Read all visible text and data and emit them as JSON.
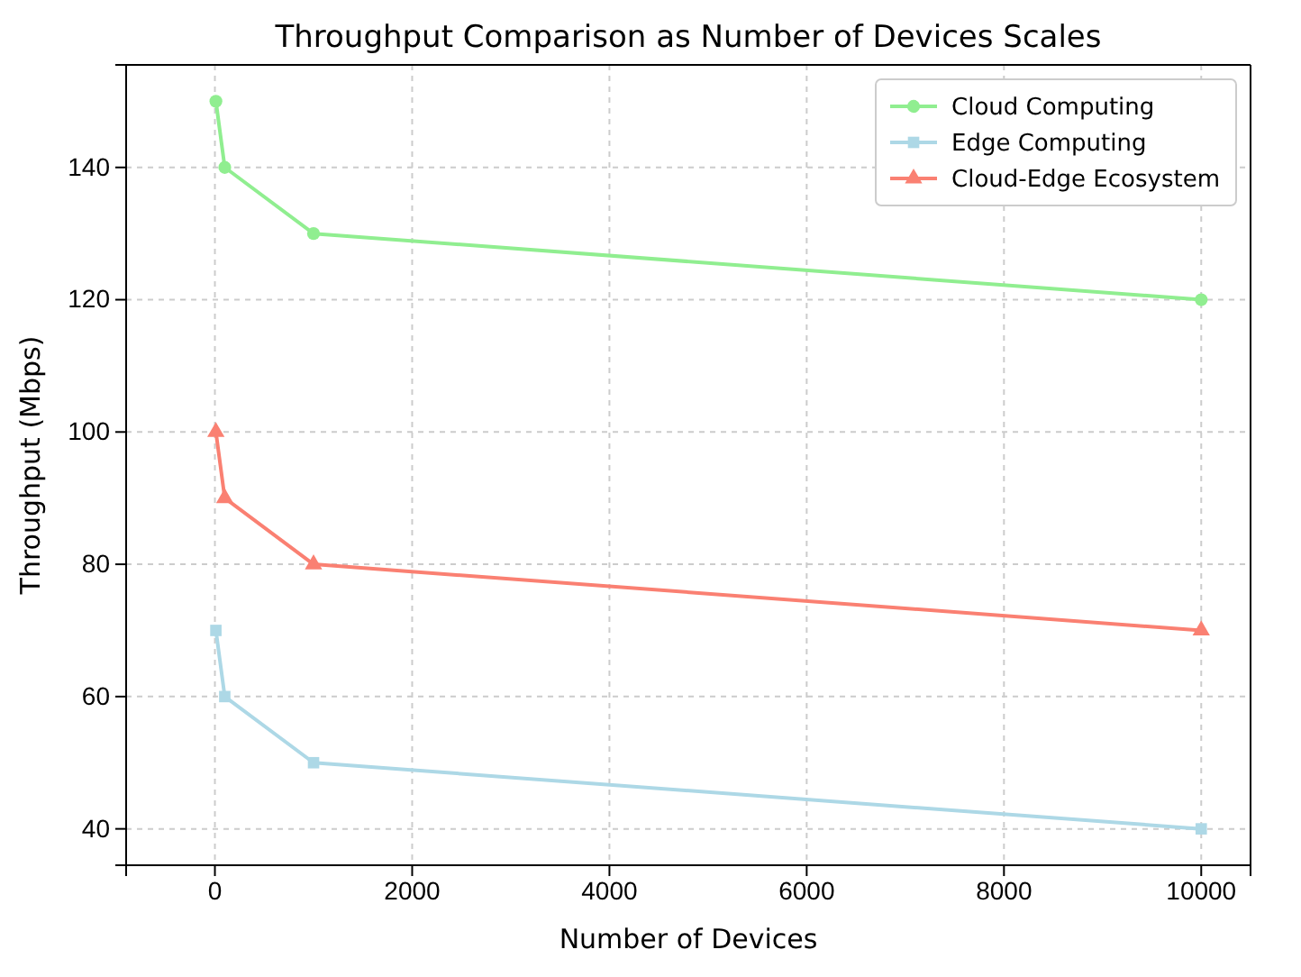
{
  "chart_data": {
    "type": "line",
    "title": "Throughput Comparison as Number of Devices Scales",
    "xlabel": "Number of Devices",
    "ylabel": "Throughput (Mbps)",
    "x": [
      10,
      100,
      1000,
      10000
    ],
    "series": [
      {
        "name": "Cloud Computing",
        "color": "#90ee90",
        "marker": "circle",
        "values": [
          150,
          140,
          130,
          120
        ]
      },
      {
        "name": "Edge Computing",
        "color": "#add8e6",
        "marker": "square",
        "values": [
          70,
          60,
          50,
          40
        ]
      },
      {
        "name": "Cloud-Edge Ecosystem",
        "color": "#fa8072",
        "marker": "triangle",
        "values": [
          100,
          90,
          80,
          70
        ]
      }
    ],
    "xlim": [
      -900,
      10500
    ],
    "xticks": [
      0,
      2000,
      4000,
      6000,
      8000,
      10000
    ],
    "ylim": [
      34.5,
      155.5
    ],
    "yticks": [
      40,
      60,
      80,
      100,
      120,
      140
    ],
    "grid": true,
    "legend": "top right",
    "line_style": "solid"
  }
}
